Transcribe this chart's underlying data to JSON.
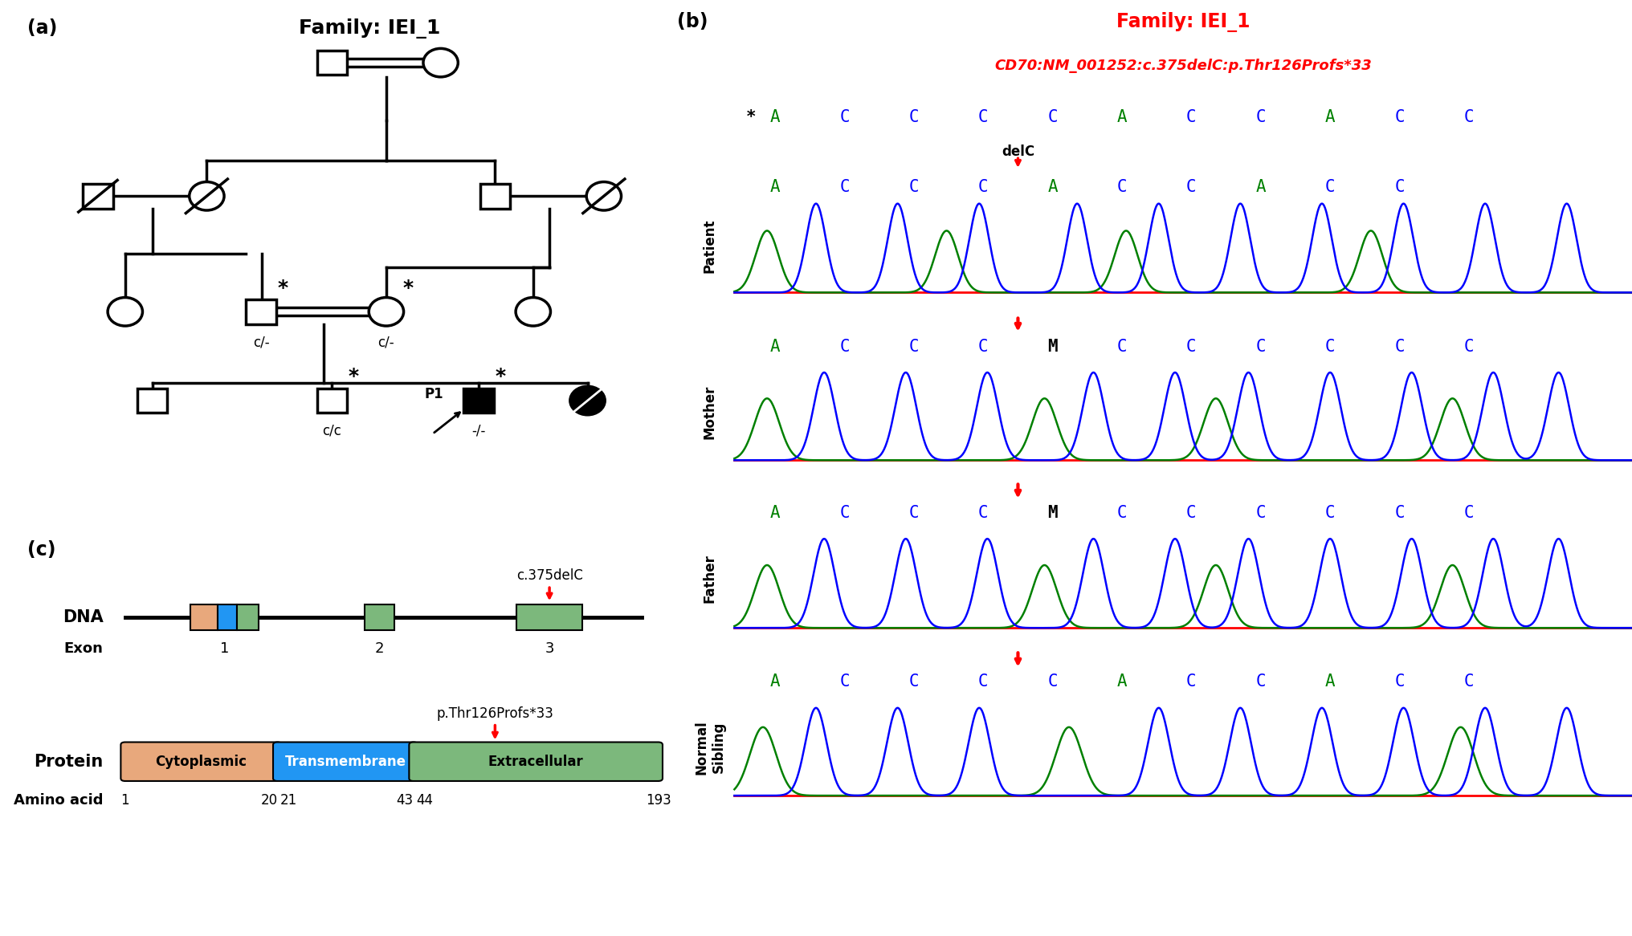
{
  "panel_a": {
    "title": "Family: IEI_1",
    "title_fontsize": 18,
    "title_fontweight": "bold"
  },
  "panel_b": {
    "title_family": "Family: IEI_1",
    "title_variant": "CD70:NM_001252:c.375delC:p.Thr126Profs*33",
    "reference_bases": [
      "*",
      "A",
      "C",
      "C",
      "C",
      "C",
      "A",
      "C",
      "C",
      "A",
      "C",
      "C"
    ],
    "patient_bases": [
      "A",
      "C",
      "C",
      "C",
      "A",
      "C",
      "C",
      "A",
      "C",
      "C"
    ],
    "mother_bases": [
      "A",
      "C",
      "C",
      "C",
      "M",
      "C",
      "C",
      "C",
      "C",
      "C",
      "C"
    ],
    "father_bases": [
      "A",
      "C",
      "C",
      "C",
      "M",
      "C",
      "C",
      "C",
      "C",
      "C",
      "C"
    ],
    "sibling_bases": [
      "A",
      "C",
      "C",
      "C",
      "C",
      "A",
      "C",
      "C",
      "A",
      "C",
      "C"
    ],
    "base_colors": {
      "A": "#008000",
      "C": "#0000FF",
      "M": "#000000",
      "*": "#000000"
    },
    "arrow_color": "#FF0000",
    "labels": [
      "Patient",
      "Mother",
      "Father",
      "Normal\nSibling"
    ]
  },
  "panel_c": {
    "cytoplasmic_color": "#E8A87C",
    "transmembrane_color": "#2196F3",
    "extracellular_color": "#7CB87C"
  }
}
